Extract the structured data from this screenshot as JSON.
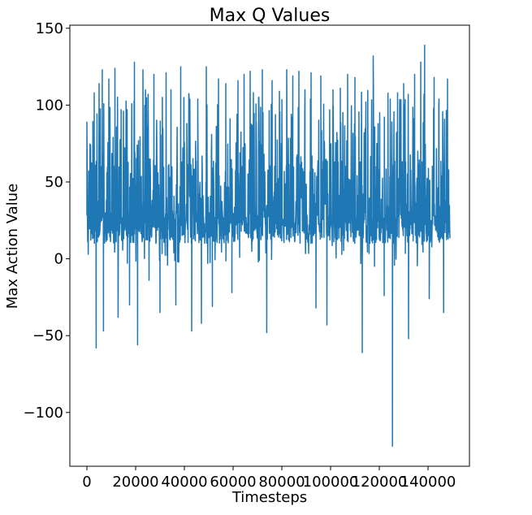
{
  "chart_data": {
    "type": "line",
    "title": "Max Q Values",
    "xlabel": "Timesteps",
    "ylabel": "Max Action Value",
    "xlim": [
      -7000,
      157000
    ],
    "ylim": [
      -135,
      152
    ],
    "xticks": [
      0,
      20000,
      40000,
      60000,
      80000,
      100000,
      120000,
      140000
    ],
    "yticks": [
      -100,
      -50,
      0,
      50,
      100,
      150
    ],
    "xtick_labels": [
      "0",
      "20000",
      "40000",
      "60000",
      "80000",
      "100000",
      "120000",
      "140000"
    ],
    "ytick_labels": [
      "−100",
      "−50",
      "0",
      "50",
      "100",
      "150"
    ],
    "grid": false,
    "series": [
      {
        "color": "#1f77b4",
        "x_range": [
          0,
          149000
        ],
        "baseline_band": [
          10,
          30
        ],
        "peaks": [
          [
            0,
            89
          ],
          [
            1500,
            74
          ],
          [
            3000,
            108
          ],
          [
            3800,
            -58
          ],
          [
            5000,
            114
          ],
          [
            6300,
            123
          ],
          [
            6800,
            -47
          ],
          [
            9000,
            117
          ],
          [
            11500,
            124
          ],
          [
            12800,
            -38
          ],
          [
            15000,
            96
          ],
          [
            17500,
            -30
          ],
          [
            19500,
            128
          ],
          [
            20800,
            -56
          ],
          [
            23000,
            123
          ],
          [
            25500,
            -14
          ],
          [
            27500,
            120
          ],
          [
            30000,
            -35
          ],
          [
            32500,
            121
          ],
          [
            34500,
            110
          ],
          [
            36500,
            -30
          ],
          [
            38500,
            125
          ],
          [
            41000,
            88
          ],
          [
            43000,
            -47
          ],
          [
            45500,
            104
          ],
          [
            47000,
            -42
          ],
          [
            49000,
            125
          ],
          [
            51500,
            -31
          ],
          [
            54000,
            117
          ],
          [
            57000,
            114
          ],
          [
            59500,
            -22
          ],
          [
            62000,
            116
          ],
          [
            64500,
            120
          ],
          [
            67000,
            122
          ],
          [
            69500,
            89
          ],
          [
            72000,
            123
          ],
          [
            73800,
            -48
          ],
          [
            76000,
            116
          ],
          [
            79000,
            109
          ],
          [
            82000,
            123
          ],
          [
            84500,
            119
          ],
          [
            87000,
            122
          ],
          [
            89500,
            110
          ],
          [
            92000,
            121
          ],
          [
            94000,
            -32
          ],
          [
            96000,
            119
          ],
          [
            98500,
            -43
          ],
          [
            101000,
            110
          ],
          [
            104000,
            111
          ],
          [
            107000,
            120
          ],
          [
            110000,
            118
          ],
          [
            113000,
            -61
          ],
          [
            114500,
            102
          ],
          [
            117500,
            132
          ],
          [
            119500,
            88
          ],
          [
            122000,
            -24
          ],
          [
            124500,
            104
          ],
          [
            125400,
            -122
          ],
          [
            127500,
            108
          ],
          [
            130000,
            114
          ],
          [
            132000,
            -52
          ],
          [
            134500,
            120
          ],
          [
            137000,
            128
          ],
          [
            138600,
            139
          ],
          [
            140500,
            -26
          ],
          [
            142500,
            118
          ],
          [
            144500,
            104
          ],
          [
            146400,
            -35
          ],
          [
            148000,
            117
          ]
        ]
      }
    ]
  }
}
